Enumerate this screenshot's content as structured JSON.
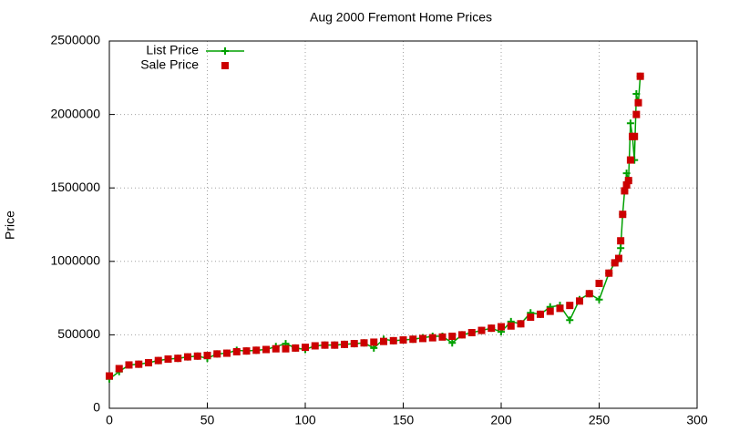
{
  "chart_data": {
    "type": "line",
    "title": "Aug 2000 Fremont Home Prices",
    "y_label": "Price",
    "x": [
      0,
      5,
      10,
      15,
      20,
      25,
      30,
      35,
      40,
      45,
      50,
      55,
      60,
      65,
      70,
      75,
      80,
      85,
      90,
      95,
      100,
      105,
      110,
      115,
      120,
      125,
      130,
      135,
      140,
      145,
      150,
      155,
      160,
      165,
      170,
      175,
      180,
      185,
      190,
      195,
      200,
      205,
      210,
      215,
      220,
      225,
      230,
      235,
      240,
      245,
      250,
      255,
      258,
      260,
      261,
      262,
      263,
      264,
      265,
      266,
      267,
      268,
      269,
      270,
      271
    ],
    "series": [
      {
        "name": "List Price",
        "color": "#00a000",
        "style": "linespoints",
        "values": [
          200000,
          250000,
          295000,
          300000,
          310000,
          325000,
          335000,
          340000,
          350000,
          355000,
          340000,
          370000,
          375000,
          395000,
          390000,
          395000,
          400000,
          420000,
          440000,
          410000,
          400000,
          425000,
          430000,
          430000,
          435000,
          440000,
          445000,
          410000,
          470000,
          460000,
          465000,
          470000,
          480000,
          490000,
          490000,
          445000,
          500000,
          515000,
          530000,
          545000,
          520000,
          590000,
          575000,
          650000,
          640000,
          690000,
          700000,
          600000,
          740000,
          780000,
          740000,
          920000,
          990000,
          1020000,
          1090000,
          1320000,
          1480000,
          1600000,
          1550000,
          1940000,
          1850000,
          1690000,
          2140000,
          2080000,
          2260000
        ]
      },
      {
        "name": "Sale Price",
        "color": "#cc0000",
        "style": "points",
        "values": [
          220000,
          270000,
          295000,
          300000,
          310000,
          325000,
          335000,
          340000,
          350000,
          355000,
          360000,
          370000,
          375000,
          385000,
          390000,
          395000,
          400000,
          405000,
          405000,
          410000,
          415000,
          425000,
          430000,
          430000,
          435000,
          440000,
          445000,
          450000,
          455000,
          460000,
          465000,
          470000,
          475000,
          480000,
          485000,
          490000,
          500000,
          515000,
          530000,
          545000,
          555000,
          560000,
          575000,
          620000,
          640000,
          660000,
          680000,
          700000,
          730000,
          780000,
          850000,
          920000,
          990000,
          1020000,
          1140000,
          1320000,
          1480000,
          1520000,
          1550000,
          1690000,
          1850000,
          1850000,
          2000000,
          2080000,
          2260000
        ]
      }
    ],
    "xlim": [
      0,
      300
    ],
    "xticks": [
      0,
      50,
      100,
      150,
      200,
      250,
      300
    ],
    "ylim": [
      0,
      2500000
    ],
    "yticks": [
      0,
      500000,
      1000000,
      1500000,
      2000000,
      2500000
    ],
    "grid": true,
    "legend": "top-left"
  }
}
